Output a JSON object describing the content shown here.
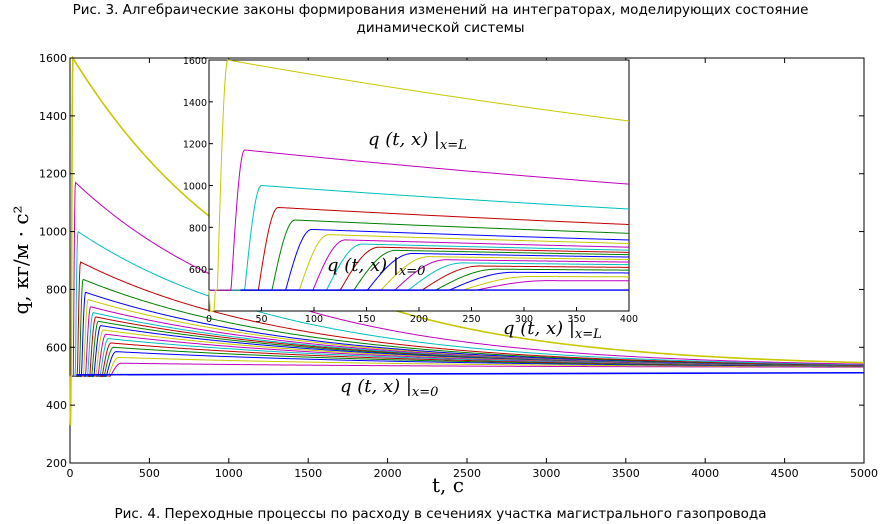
{
  "caption_top_line1": "Рис. 3. Алгебраические законы формирования изменений на интеграторах, моделирующих состояние",
  "caption_top_line2": "динамической системы",
  "caption_bottom": "Рис. 4. Переходные процессы по расходу в сечениях участка магистрального газопровода",
  "chart_data": [
    {
      "type": "line",
      "name": "main",
      "xlabel": "t, c",
      "ylabel": "q, кг/м · c²",
      "xlim": [
        0,
        5000
      ],
      "ylim": [
        200,
        1600
      ],
      "x_ticks": [
        "0",
        "500",
        "1000",
        "1500",
        "2000",
        "2500",
        "3000",
        "3500",
        "4000",
        "4500",
        "5000"
      ],
      "y_ticks": [
        "200",
        "400",
        "600",
        "800",
        "1000",
        "1200",
        "1400",
        "1600"
      ],
      "grid": false,
      "annotations": [
        "q (t, x) |x=0",
        "q (t, x) |x=L"
      ],
      "curves": {
        "count": 20,
        "initial_value": 500,
        "final_value": 530,
        "outlet_peak": 1600,
        "peaks": [
          1600,
          1170,
          1000,
          895,
          835,
          790,
          765,
          740,
          720,
          705,
          690,
          675,
          660,
          645,
          630,
          615,
          600,
          585,
          565,
          545
        ],
        "colors": [
          "#c8c800",
          "#bf00bf",
          "#00bfbf",
          "#bf0000",
          "#008000",
          "#0000ff",
          "#c8c800",
          "#bf00bf",
          "#00bfbf",
          "#bf0000",
          "#008000",
          "#0000ff",
          "#c8c800",
          "#bf00bf",
          "#00bfbf",
          "#bf0000",
          "#008000",
          "#0000ff",
          "#c8c800",
          "#bf00bf"
        ]
      }
    },
    {
      "type": "line",
      "name": "inset",
      "xlim": [
        0,
        400
      ],
      "ylim": [
        400,
        1600
      ],
      "x_ticks": [
        "0",
        "50",
        "100",
        "150",
        "200",
        "250",
        "300",
        "350",
        "400"
      ],
      "y_ticks": [
        "600",
        "800",
        "1000",
        "1200",
        "1400",
        "1600"
      ],
      "grid": false,
      "annotations": [
        "q (t, x) |x=L",
        "q (t, x) |x=0"
      ]
    }
  ]
}
